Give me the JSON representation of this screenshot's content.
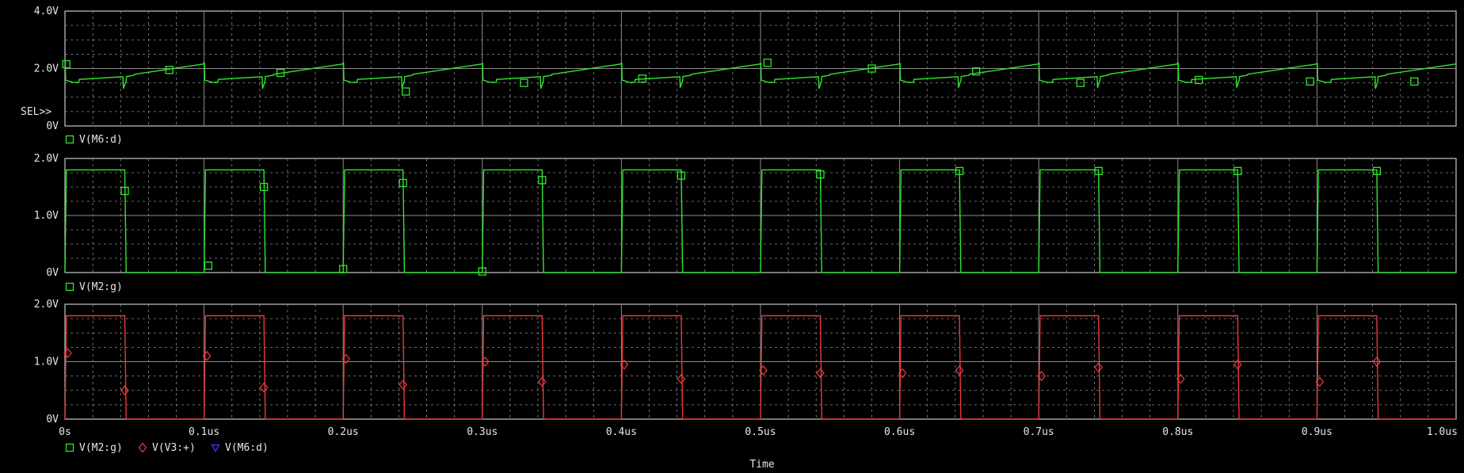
{
  "window": {
    "x_axis_title": "Time",
    "sel_marker": "SEL>>"
  },
  "colors": {
    "background": "#000000",
    "grid": "#8c8c8c",
    "frame": "#c8c8c8",
    "text": "#e6e6e6",
    "green_trace": "#2ee62e",
    "red_trace": "#e83a3a",
    "blue_marker": "#3a3aff"
  },
  "chart_data": [
    {
      "type": "line",
      "plot_id": "plot-1",
      "x_unit": "us",
      "xlim": [
        0,
        1.0
      ],
      "ylim": [
        0,
        4.0
      ],
      "y_ticks": [
        "4.0V",
        "2.0V",
        "0V"
      ],
      "y_tick_values": [
        4.0,
        2.0,
        0
      ],
      "legend": [
        {
          "name": "V(M6:d)",
          "marker": "square",
          "color": "#2ee62e"
        }
      ],
      "series": [
        {
          "name": "V(M6:d)",
          "waveform": "sawtooth-ripple",
          "period_us": 0.1,
          "level_min": 1.45,
          "level_max": 2.15,
          "markers_x": [
            0.001,
            0.075,
            0.155,
            0.245,
            0.33,
            0.415,
            0.505,
            0.58,
            0.655,
            0.73,
            0.815,
            0.895,
            0.97
          ],
          "markers_y": [
            2.15,
            1.95,
            1.85,
            1.2,
            1.5,
            1.65,
            2.2,
            2.0,
            1.9,
            1.5,
            1.6,
            1.55,
            1.55
          ]
        }
      ]
    },
    {
      "type": "line",
      "plot_id": "plot-2",
      "x_unit": "us",
      "xlim": [
        0,
        1.0
      ],
      "ylim": [
        0,
        2.0
      ],
      "y_ticks": [
        "2.0V",
        "1.0V",
        "0V"
      ],
      "y_tick_values": [
        2.0,
        1.0,
        0
      ],
      "legend": [
        {
          "name": "V(M2:g)",
          "marker": "square",
          "color": "#2ee62e"
        }
      ],
      "series": [
        {
          "name": "V(M2:g)",
          "waveform": "pulse",
          "period_us": 0.1,
          "high": 1.8,
          "low": 0,
          "rise_us": 0.001,
          "width_us": 0.042,
          "markers_x": [
            0.043,
            0.103,
            0.143,
            0.2,
            0.243,
            0.3,
            0.343,
            0.443,
            0.543,
            0.643,
            0.743,
            0.843,
            0.943
          ],
          "markers_y": [
            1.43,
            0.12,
            1.5,
            0.06,
            1.57,
            0.02,
            1.62,
            1.7,
            1.72,
            1.78,
            1.78,
            1.78,
            1.78
          ]
        }
      ]
    },
    {
      "type": "line",
      "plot_id": "plot-3",
      "x_unit": "us",
      "xlim": [
        0,
        1.0
      ],
      "ylim": [
        0,
        2.0
      ],
      "y_ticks": [
        "2.0V",
        "1.0V",
        "0V"
      ],
      "y_tick_values": [
        2.0,
        1.0,
        0
      ],
      "x_ticks": [
        "0s",
        "0.1us",
        "0.2us",
        "0.3us",
        "0.4us",
        "0.5us",
        "0.6us",
        "0.7us",
        "0.8us",
        "0.9us",
        "1.0us"
      ],
      "x_tick_values": [
        0,
        0.1,
        0.2,
        0.3,
        0.4,
        0.5,
        0.6,
        0.7,
        0.8,
        0.9,
        1.0
      ],
      "legend": [
        {
          "name": "V(M2:g)",
          "marker": "square",
          "color": "#2ee62e"
        },
        {
          "name": "V(V3:+)",
          "marker": "diamond",
          "color": "#e83a3a"
        },
        {
          "name": "V(M6:d)",
          "marker": "triangle",
          "color": "#3a3aff"
        }
      ],
      "series": [
        {
          "name": "V(V3:+)",
          "waveform": "pulse",
          "period_us": 0.1,
          "high": 1.8,
          "low": 0,
          "rise_us": 0.001,
          "width_us": 0.042,
          "markers_x": [
            0.002,
            0.043,
            0.102,
            0.143,
            0.202,
            0.243,
            0.302,
            0.343,
            0.402,
            0.443,
            0.502,
            0.543,
            0.602,
            0.643,
            0.702,
            0.743,
            0.802,
            0.843,
            0.902,
            0.943
          ],
          "markers_y": [
            1.15,
            0.5,
            1.1,
            0.55,
            1.05,
            0.6,
            1.0,
            0.65,
            0.95,
            0.7,
            0.85,
            0.8,
            0.8,
            0.85,
            0.75,
            0.9,
            0.7,
            0.95,
            0.65,
            1.0
          ]
        }
      ]
    }
  ]
}
